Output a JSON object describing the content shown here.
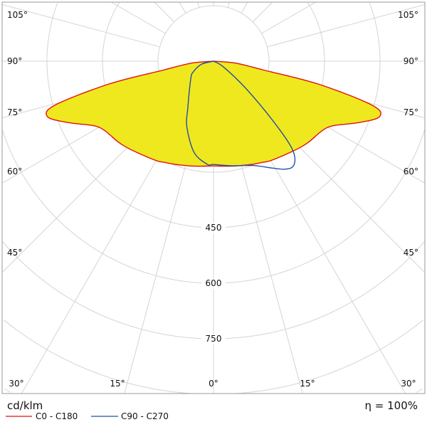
{
  "chart_data": {
    "type": "polar",
    "unit_label": "cd/klm",
    "efficiency_label": "η = 100%",
    "radial_ticks": [
      150,
      300,
      450,
      600,
      750,
      900,
      1050
    ],
    "radial_tick_labels": [
      "450",
      "600",
      "750"
    ],
    "angle_ticks": [
      0,
      15,
      30,
      45,
      60,
      75,
      90,
      105,
      120,
      135,
      150,
      165,
      180
    ],
    "angle_labels_side": [
      "105°",
      "90°",
      "75°",
      "60°",
      "45°",
      "30°"
    ],
    "angle_labels_bottom": [
      "30°",
      "15°",
      "0°",
      "15°",
      "30°"
    ],
    "grid": true,
    "legend_placement": "bottom-left",
    "fill_color": "#f0e81e",
    "series": [
      {
        "name": "C0 - C180",
        "color": "#e01010",
        "filled": true,
        "angles": [
          -90,
          -85,
          -80,
          -77.7,
          -74.5,
          -71.5,
          -67,
          -62,
          -58,
          -50,
          -46,
          -40,
          -30,
          -26,
          -20,
          -10,
          0,
          10,
          20,
          26,
          30,
          40,
          46,
          50,
          58,
          62,
          67,
          71.5,
          74.5,
          77.7,
          80,
          85,
          90
        ],
        "values": [
          0,
          60,
          137,
          289,
          445,
          473,
          425,
          370,
          350,
          338,
          332,
          322,
          310,
          304,
          297,
          288,
          283,
          288,
          297,
          304,
          310,
          322,
          332,
          338,
          350,
          370,
          425,
          473,
          445,
          289,
          137,
          60,
          0
        ]
      },
      {
        "name": "C90 - C270",
        "color": "#1f4fa8",
        "filled": false,
        "angles": [
          -90,
          -76,
          -62,
          -52,
          -29,
          -22,
          -12,
          -3.5,
          0,
          10,
          21,
          33,
          38,
          42,
          45,
          50,
          60,
          90
        ],
        "values": [
          0,
          33,
          62,
          78,
          143,
          192,
          252,
          279,
          279,
          287,
          302,
          348,
          354,
          316,
          225,
          113,
          31,
          0
        ]
      }
    ]
  }
}
